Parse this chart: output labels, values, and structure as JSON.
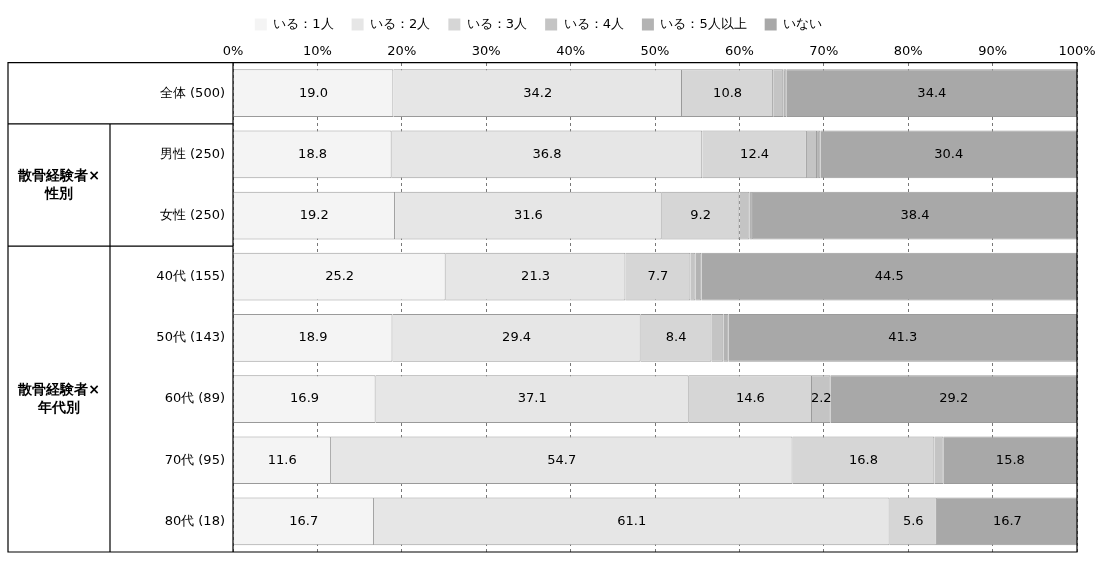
{
  "chart_data": {
    "type": "bar",
    "orientation": "horizontal",
    "stacked": true,
    "categories": [
      "全体 (500)",
      "男性 (250)",
      "女性 (250)",
      "40代 (155)",
      "50代 (143)",
      "60代 (89)",
      "70代 (95)",
      "80代 (18)"
    ],
    "series": [
      {
        "name": "いる：1人",
        "color": "#f4f4f4",
        "values": [
          19.0,
          18.8,
          19.2,
          25.2,
          18.9,
          16.9,
          11.6,
          16.7
        ],
        "value_labels": [
          "19.0",
          "18.8",
          "19.2",
          "25.2",
          "18.9",
          "16.9",
          "11.6",
          "16.7"
        ]
      },
      {
        "name": "いる：2人",
        "color": "#e6e6e6",
        "values": [
          34.2,
          36.8,
          31.6,
          21.3,
          29.4,
          37.1,
          54.7,
          61.1
        ],
        "value_labels": [
          "34.2",
          "36.8",
          "31.6",
          "21.3",
          "29.4",
          "37.1",
          "54.7",
          "61.1"
        ]
      },
      {
        "name": "いる：3人",
        "color": "#d6d6d6",
        "values": [
          10.8,
          12.4,
          9.2,
          7.7,
          8.4,
          14.6,
          16.8,
          5.6
        ],
        "value_labels": [
          "10.8",
          "12.4",
          "9.2",
          "7.7",
          "8.4",
          "14.6",
          "16.8",
          "5.6"
        ]
      },
      {
        "name": "いる：4人",
        "color": "#c4c4c4",
        "values": [
          1.2,
          1.2,
          1.2,
          0.6,
          1.4,
          2.2,
          1.1,
          0
        ],
        "value_labels": [
          null,
          null,
          null,
          null,
          null,
          "2.2",
          null,
          null
        ]
      },
      {
        "name": "いる：5人以上",
        "color": "#b3b3b3",
        "values": [
          0.4,
          0.4,
          0.4,
          0.7,
          0.6,
          0,
          0,
          0
        ],
        "value_labels": [
          null,
          null,
          null,
          null,
          null,
          null,
          null,
          null
        ]
      },
      {
        "name": "いない",
        "color": "#a8a8a8",
        "values": [
          34.4,
          30.4,
          38.4,
          44.5,
          41.3,
          29.2,
          15.8,
          16.7
        ],
        "value_labels": [
          "34.4",
          "30.4",
          "38.4",
          "44.5",
          "41.3",
          "29.2",
          "15.8",
          "16.7"
        ]
      }
    ],
    "xlim": [
      0,
      100
    ],
    "xticks": [
      {
        "value": 0,
        "label": "0%"
      },
      {
        "value": 10,
        "label": "10%"
      },
      {
        "value": 20,
        "label": "20%"
      },
      {
        "value": 30,
        "label": "30%"
      },
      {
        "value": 40,
        "label": "40%"
      },
      {
        "value": 50,
        "label": "50%"
      },
      {
        "value": 60,
        "label": "60%"
      },
      {
        "value": 70,
        "label": "70%"
      },
      {
        "value": 80,
        "label": "80%"
      },
      {
        "value": 90,
        "label": "90%"
      },
      {
        "value": 100,
        "label": "100%"
      }
    ],
    "grid": "x",
    "legend": "top",
    "annotations": [
      "散骨経験者×性別",
      "散骨経験者×年代別"
    ]
  }
}
